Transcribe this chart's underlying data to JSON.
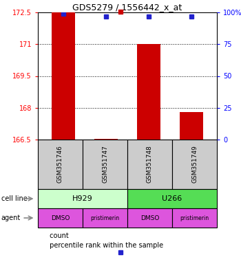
{
  "title": "GDS5279 / 1556442_x_at",
  "samples": [
    "GSM351746",
    "GSM351747",
    "GSM351748",
    "GSM351749"
  ],
  "bar_values": [
    172.5,
    166.52,
    171.0,
    167.8
  ],
  "bar_base": 166.5,
  "percentile_values": [
    99,
    97,
    97,
    97
  ],
  "ylim_left": [
    166.5,
    172.5
  ],
  "ylim_right": [
    0,
    100
  ],
  "yticks_left": [
    166.5,
    168,
    169.5,
    171,
    172.5
  ],
  "ytick_labels_left": [
    "166.5",
    "168",
    "169.5",
    "171",
    "172.5"
  ],
  "yticks_right": [
    0,
    25,
    50,
    75,
    100
  ],
  "ytick_labels_right": [
    "0",
    "25",
    "50",
    "75",
    "100%"
  ],
  "bar_color": "#cc0000",
  "percentile_color": "#2222cc",
  "cell_line_labels": [
    "H929",
    "U266"
  ],
  "cell_line_colors": [
    "#ccffcc",
    "#55dd55"
  ],
  "agent_labels": [
    "DMSO",
    "pristimerin",
    "DMSO",
    "pristimerin"
  ],
  "agent_color": "#dd55dd",
  "sample_box_color": "#cccccc",
  "grid_yticks": [
    168.0,
    169.5,
    171.0
  ],
  "legend_count_color": "#cc0000",
  "legend_percentile_color": "#2222cc",
  "figsize": [
    3.5,
    3.84
  ],
  "dpi": 100
}
